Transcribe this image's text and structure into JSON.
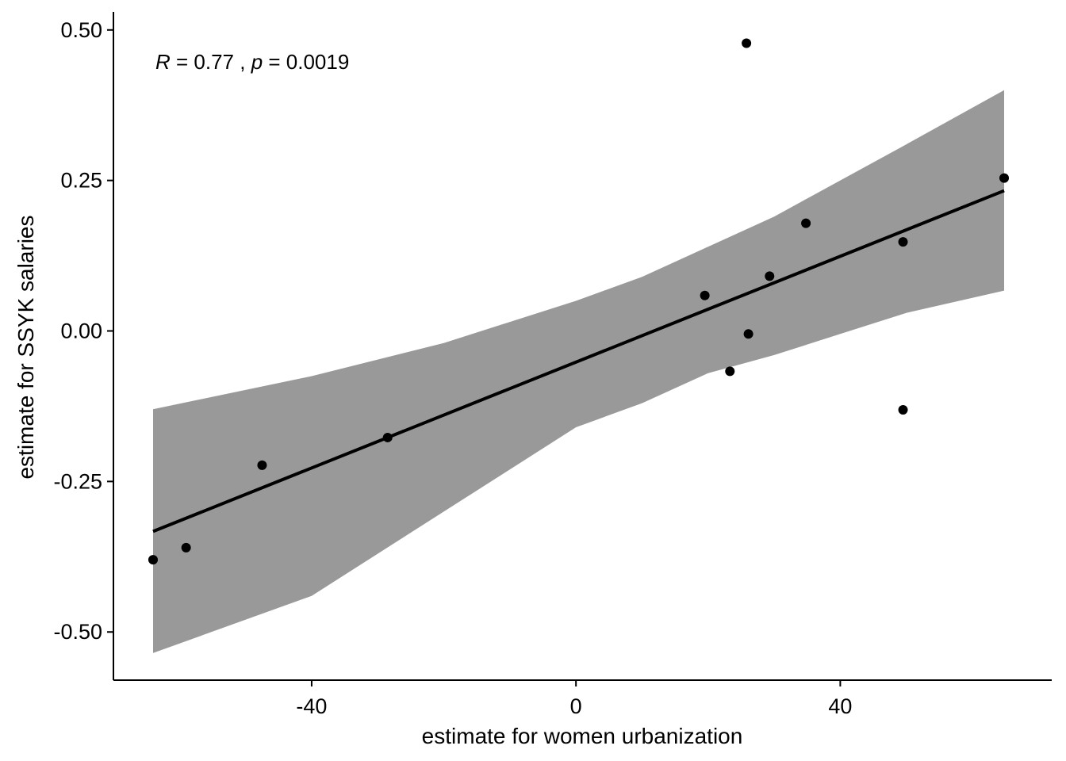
{
  "chart_data": {
    "type": "scatter",
    "xlabel": "estimate for women urbanization",
    "ylabel": "estimate for SSYK salaries",
    "xlim": [
      -70,
      72
    ],
    "ylim": [
      -0.58,
      0.53
    ],
    "x_ticks": [
      -40,
      0,
      40
    ],
    "x_tick_labels": [
      "-40",
      "0",
      "40"
    ],
    "y_ticks": [
      0.5,
      0.25,
      0.0,
      -0.25,
      -0.5
    ],
    "y_tick_labels": [
      "0.50",
      "0.25",
      "0.00",
      "-0.25",
      "-0.50"
    ],
    "grid": false,
    "annotation": {
      "r_symbol": "R",
      "r_value": " = 0.77 , ",
      "p_symbol": "p",
      "p_value": " = 0.0019"
    },
    "points": [
      {
        "x": -64,
        "y": -0.38
      },
      {
        "x": -59,
        "y": -0.36
      },
      {
        "x": -47.5,
        "y": -0.223
      },
      {
        "x": -28.5,
        "y": -0.177
      },
      {
        "x": 19.5,
        "y": 0.059
      },
      {
        "x": 23.3,
        "y": -0.067
      },
      {
        "x": 25.8,
        "y": 0.478
      },
      {
        "x": 26.1,
        "y": -0.005
      },
      {
        "x": 29.3,
        "y": 0.091
      },
      {
        "x": 34.8,
        "y": 0.179
      },
      {
        "x": 49.5,
        "y": 0.148
      },
      {
        "x": 49.5,
        "y": -0.131
      },
      {
        "x": 64.8,
        "y": 0.254
      }
    ],
    "regression_line": {
      "x": [
        -64,
        64.8
      ],
      "y": [
        -0.333,
        0.233
      ]
    },
    "confidence_band": {
      "x": [
        -64,
        -40,
        -20,
        0,
        10,
        20,
        30,
        40,
        50,
        64.8
      ],
      "upper": [
        -0.13,
        -0.075,
        -0.02,
        0.05,
        0.09,
        0.14,
        0.19,
        0.25,
        0.31,
        0.4
      ],
      "lower": [
        -0.535,
        -0.44,
        -0.3,
        -0.16,
        -0.12,
        -0.07,
        -0.04,
        -0.005,
        0.03,
        0.067
      ]
    },
    "colors": {
      "points": "#000000",
      "line": "#000000",
      "band": "#999999",
      "axis": "#000000"
    }
  }
}
